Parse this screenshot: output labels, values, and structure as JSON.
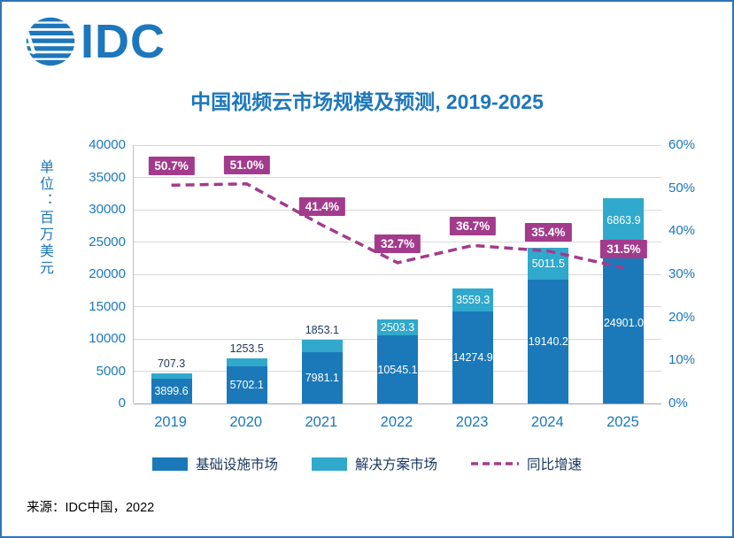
{
  "logo": {
    "text": "IDC"
  },
  "title": "中国视频云市场规模及预测, 2019-2025",
  "y_axis": {
    "unit_label": "单位：百万美元",
    "ticks": [
      0,
      5000,
      10000,
      15000,
      20000,
      25000,
      30000,
      35000,
      40000
    ]
  },
  "y2_axis": {
    "ticks": [
      "0%",
      "10%",
      "20%",
      "30%",
      "40%",
      "50%",
      "60%"
    ]
  },
  "chart_data": {
    "type": "bar",
    "stacked": true,
    "title": "中国视频云市场规模及预测, 2019-2025",
    "ylabel": "单位：百万美元",
    "categories": [
      "2019",
      "2020",
      "2021",
      "2022",
      "2023",
      "2024",
      "2025"
    ],
    "series": [
      {
        "name": "基础设施市场",
        "color": "#1B79B9",
        "values": [
          3899.6,
          5702.1,
          7981.1,
          10545.1,
          14274.9,
          19140.2,
          24901.0
        ]
      },
      {
        "name": "解决方案市场",
        "color": "#30A9CC",
        "values": [
          707.3,
          1253.5,
          1853.1,
          2503.3,
          3559.3,
          5011.5,
          6863.9
        ]
      }
    ],
    "line_series": {
      "name": "同比增速",
      "color": "#A33B8D",
      "axis": "right",
      "values_pct": [
        50.7,
        51.0,
        41.4,
        32.7,
        36.7,
        35.4,
        31.5
      ]
    },
    "ylim": [
      0,
      40000
    ],
    "y2lim": [
      0,
      60
    ],
    "grid": true,
    "legend_position": "bottom"
  },
  "legend": {
    "items": [
      {
        "label": "基础设施市场"
      },
      {
        "label": "解决方案市场"
      },
      {
        "label": "同比增速"
      }
    ]
  },
  "source": "来源：IDC中国，2022",
  "colors": {
    "title": "#1C77BC",
    "axis": "#1C77BC",
    "growth_label_bg": "#A33B8D",
    "border": "#2E75B6"
  }
}
